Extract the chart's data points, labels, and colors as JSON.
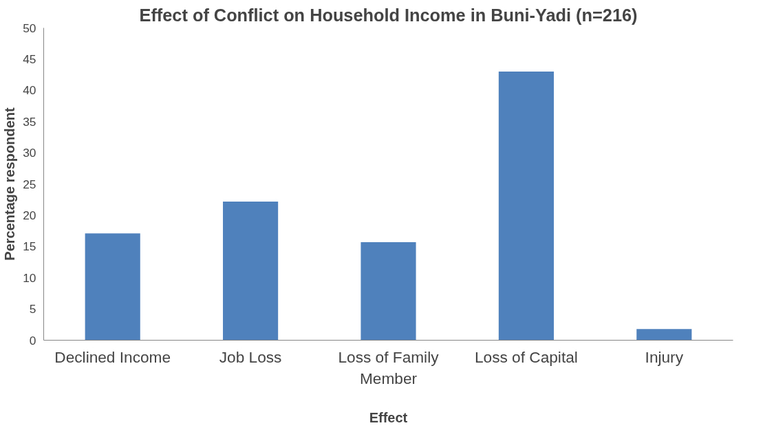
{
  "chart_data": {
    "type": "bar",
    "title": "Effect of Conflict on Household Income in Buni-Yadi (n=216)",
    "xlabel": "Effect",
    "ylabel": "Percentage respondent",
    "categories": [
      "Declined Income",
      "Job Loss",
      "Loss of Family Member",
      "Loss of Capital",
      "Injury"
    ],
    "values": [
      17.1,
      22.2,
      15.7,
      43.0,
      1.8
    ],
    "color": "#4f81bd",
    "ylim": [
      0,
      50
    ],
    "yticks": [
      0,
      5,
      10,
      15,
      20,
      25,
      30,
      35,
      40,
      45,
      50
    ],
    "grid": false
  }
}
